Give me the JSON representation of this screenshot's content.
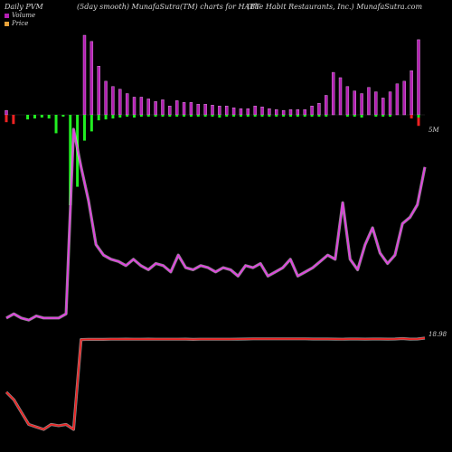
{
  "header": {
    "left": "Daily PVM",
    "center_left": "(5day smooth) MunafaSutra(TM) charts for HABT",
    "right": "(The Habit Restaurants, Inc.) MunafaSutra.com"
  },
  "legend": {
    "volume_label": "Volume",
    "price_label": "Price"
  },
  "colors": {
    "background": "#000000",
    "up_bar": "#b41fb4",
    "down_bar_red": "#ee2222",
    "down_bar_green": "#22ee22",
    "volume_line": "#e040e0",
    "price_line": "#ee2222"
  },
  "chart_data": {
    "type": "line",
    "volume_axis_label": "5M",
    "price_axis_label": "18.98",
    "pvm_bars": {
      "up": [
        5,
        0,
        0,
        0,
        0,
        0,
        0,
        0,
        0,
        0,
        0,
        90,
        83,
        55,
        38,
        32,
        29,
        24,
        20,
        20,
        18,
        15,
        17,
        10,
        16,
        14,
        14,
        12,
        12,
        11,
        10,
        10,
        8,
        7,
        7,
        10,
        9,
        7,
        6,
        5,
        6,
        6,
        6,
        10,
        13,
        22,
        48,
        42,
        32,
        27,
        24,
        31,
        26,
        19,
        26,
        35,
        38,
        50,
        85
      ],
      "down_red": [
        8,
        10,
        0,
        0,
        0,
        0,
        0,
        0,
        0,
        0,
        0,
        0,
        0,
        0,
        0,
        0,
        0,
        0,
        0,
        0,
        0,
        0,
        0,
        0,
        0,
        0,
        0,
        0,
        0,
        0,
        0,
        0,
        0,
        0,
        0,
        0,
        0,
        0,
        0,
        0,
        0,
        0,
        0,
        0,
        0,
        0,
        0,
        0,
        0,
        0,
        0,
        0,
        0,
        0,
        0,
        0,
        0,
        4,
        12
      ],
      "down_green": [
        0,
        0,
        0,
        5,
        4,
        3,
        4,
        20,
        2,
        98,
        78,
        28,
        18,
        6,
        5,
        4,
        3,
        2,
        3,
        2,
        2,
        2,
        2,
        2,
        2,
        2,
        2,
        2,
        2,
        2,
        3,
        2,
        2,
        2,
        2,
        2,
        2,
        2,
        2,
        2,
        2,
        2,
        2,
        2,
        2,
        2,
        0,
        0,
        2,
        2,
        3,
        0,
        2,
        2,
        2,
        0,
        0,
        0,
        3
      ]
    },
    "volume": [
      10,
      12,
      10,
      9,
      11,
      10,
      10,
      10,
      12,
      100,
      82,
      66,
      45,
      40,
      38,
      37,
      35,
      38,
      35,
      33,
      36,
      35,
      32,
      40,
      34,
      33,
      35,
      34,
      32,
      34,
      33,
      30,
      35,
      34,
      36,
      30,
      32,
      34,
      38,
      30,
      32,
      34,
      37,
      40,
      38,
      65,
      38,
      33,
      45,
      53,
      41,
      36,
      40,
      55,
      58,
      64,
      82
    ],
    "price": [
      16.8,
      16.5,
      16.0,
      15.5,
      15.4,
      15.3,
      15.5,
      15.45,
      15.5,
      15.3,
      18.92,
      18.93,
      18.93,
      18.93,
      18.935,
      18.935,
      18.94,
      18.935,
      18.935,
      18.94,
      18.935,
      18.935,
      18.935,
      18.935,
      18.94,
      18.93,
      18.935,
      18.935,
      18.935,
      18.935,
      18.935,
      18.94,
      18.945,
      18.95,
      18.95,
      18.95,
      18.95,
      18.95,
      18.95,
      18.95,
      18.95,
      18.945,
      18.945,
      18.945,
      18.94,
      18.935,
      18.945,
      18.945,
      18.94,
      18.945,
      18.945,
      18.94,
      18.945,
      18.96,
      18.94,
      18.945,
      18.98
    ]
  }
}
